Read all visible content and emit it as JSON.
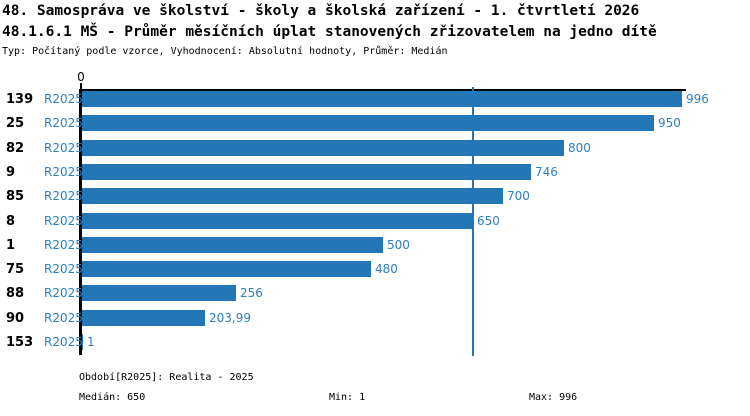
{
  "header": {
    "title_line1": "48. Samospráva ve školství - školy a školská zařízení - 1. čtvrtletí 2026",
    "title_line2": "48.1.6.1 MŠ - Průměr měsíčních úplat stanovených zřizovatelem na jedno dítě",
    "meta_line": "Typ: Počítaný podle vzorce, Vyhodnocení: Absolutní hodnoty, Průměr: Medián"
  },
  "chart_data": {
    "type": "bar",
    "orientation": "horizontal",
    "axis_origin_label": "0",
    "series_label": "R2025",
    "categories": [
      "139",
      "25",
      "82",
      "9",
      "85",
      "8",
      "1",
      "75",
      "88",
      "90",
      "153"
    ],
    "values": [
      996,
      950,
      800,
      746,
      700,
      650,
      500,
      480,
      256,
      203.99,
      1
    ],
    "value_labels": [
      "996",
      "950",
      "800",
      "746",
      "700",
      "650",
      "500",
      "480",
      "256",
      "203,99",
      "1"
    ],
    "median_value": 650,
    "xlim": [
      0,
      1008
    ],
    "grid": false,
    "legend_position": "none",
    "bar_color": "#2377b6",
    "text_color": "#2d7fc0",
    "axis_color": "#000000"
  },
  "footer": {
    "period_label": "Období[R2025]: Realita - 2025",
    "median_label": "Medián: 650",
    "min_label": "Min: 1",
    "max_label": "Max: 996"
  }
}
